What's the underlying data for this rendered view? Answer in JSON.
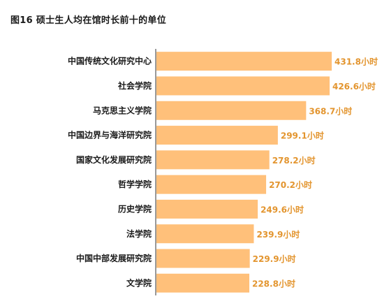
{
  "page": {
    "title": "图16  硕士生人均在馆时长前十的单位"
  },
  "colors": {
    "bar": "#FFC07A",
    "value_label": "#E3952F",
    "axis": "#333333"
  },
  "chart_data": {
    "type": "bar",
    "orientation": "horizontal",
    "title": "图16  硕士生人均在馆时长前十的单位",
    "categories": [
      "中国传统文化研究中心",
      "社会学院",
      "马克思主义学院",
      "中国边界与海洋研究院",
      "国家文化发展研究院",
      "哲学学院",
      "历史学院",
      "法学院",
      "中国中部发展研究院",
      "文学院"
    ],
    "values": [
      431.8,
      426.6,
      368.7,
      299.1,
      278.2,
      270.2,
      249.6,
      239.9,
      229.9,
      228.8
    ],
    "value_labels": [
      "431.8小时",
      "426.6小时",
      "368.7小时",
      "299.1小时",
      "278.2小时",
      "270.2小时",
      "249.6小时",
      "239.9小时",
      "229.9小时",
      "228.8小时"
    ],
    "unit": "小时",
    "xlim": [
      0,
      440
    ],
    "grid": false,
    "legend": "none"
  }
}
